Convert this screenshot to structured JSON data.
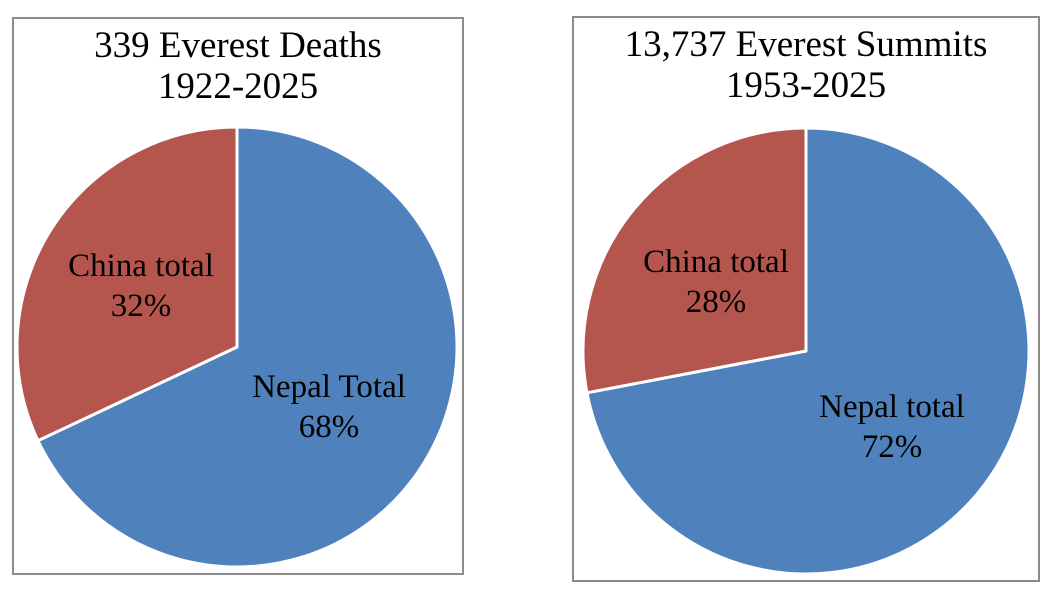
{
  "page": {
    "background": "#FFFFFF",
    "frame_border_color": "#8C8C8C",
    "text_color": "#000000"
  },
  "chart_data": [
    {
      "type": "pie",
      "title": "339 Everest Deaths 1922-2025",
      "title_line1": "339 Everest Deaths",
      "title_line2": "1922-2025",
      "start_angle_deg": 0,
      "direction": "clockwise",
      "divider_color": "#FFFFFF",
      "legend": "none",
      "slices": [
        {
          "label": "Nepal Total",
          "percent": 68,
          "percent_label": "68%",
          "color": "#4F81BD"
        },
        {
          "label": "China total",
          "percent": 32,
          "percent_label": "32%",
          "color": "#B4564E"
        }
      ]
    },
    {
      "type": "pie",
      "title": "13,737 Everest Summits 1953-2025",
      "title_line1": "13,737 Everest Summits",
      "title_line2": "1953-2025",
      "start_angle_deg": 0,
      "direction": "clockwise",
      "divider_color": "#FFFFFF",
      "legend": "none",
      "slices": [
        {
          "label": "Nepal total",
          "percent": 72,
          "percent_label": "72%",
          "color": "#4F81BD"
        },
        {
          "label": "China total",
          "percent": 28,
          "percent_label": "28%",
          "color": "#B4564E"
        }
      ]
    }
  ]
}
